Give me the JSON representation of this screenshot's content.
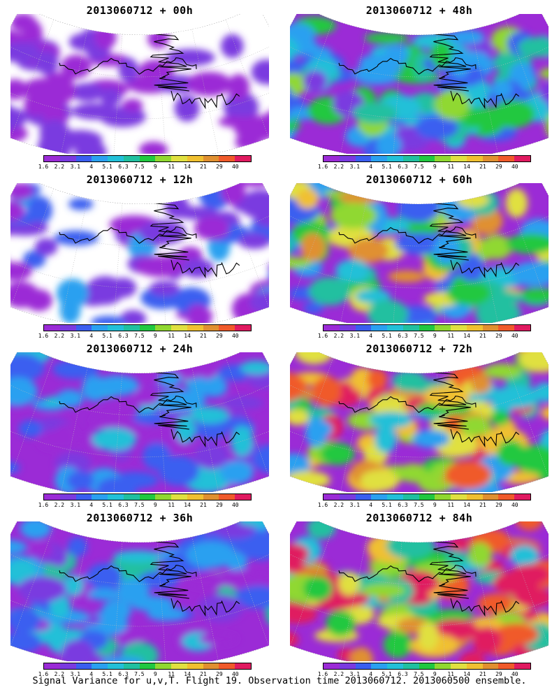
{
  "panels": [
    {
      "title": "2013060712 + 00h",
      "level": 0
    },
    {
      "title": "2013060712 + 48h",
      "level": 4
    },
    {
      "title": "2013060712 + 12h",
      "level": 1
    },
    {
      "title": "2013060712 + 60h",
      "level": 5
    },
    {
      "title": "2013060712 + 24h",
      "level": 2
    },
    {
      "title": "2013060712 + 72h",
      "level": 6
    },
    {
      "title": "2013060712 + 36h",
      "level": 3
    },
    {
      "title": "2013060712 + 84h",
      "level": 7
    }
  ],
  "colorbar": {
    "labels": [
      "1.6",
      "2.2",
      "3.1",
      "4",
      "5.1",
      "6.3",
      "7.5",
      "9",
      "11",
      "14",
      "21",
      "29",
      "40"
    ],
    "colors": [
      "#9b2bd6",
      "#7a3ae0",
      "#3a5ef0",
      "#2aa0f0",
      "#22c0d8",
      "#20c0a0",
      "#20c840",
      "#90d830",
      "#e0e040",
      "#f0c030",
      "#e09030",
      "#f05a2a",
      "#e01a60"
    ]
  },
  "footer": "Signal Variance for u,v,T. Flight 19. Observation time 2013060712. 2013060500 ensemble."
}
